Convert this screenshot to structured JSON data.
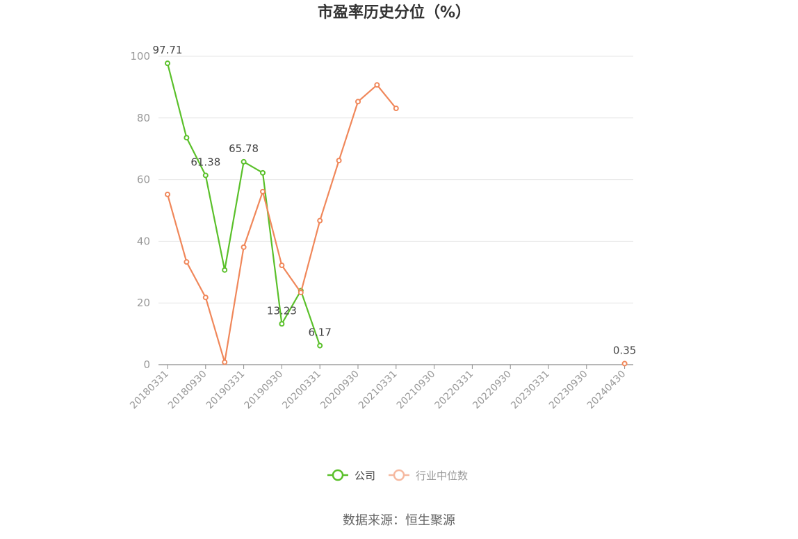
{
  "chart_data": {
    "type": "line",
    "title": "市盈率历史分位（%）",
    "source": "数据来源：恒生聚源",
    "ylim": [
      0,
      100
    ],
    "yticks": [
      0,
      20,
      40,
      60,
      80,
      100
    ],
    "x": [
      "20180331",
      "20180630",
      "20180930",
      "20181231",
      "20190331",
      "20190630",
      "20190930",
      "20191231",
      "20200331",
      "20200630",
      "20200930",
      "20201231",
      "20210331",
      "20210630",
      "20210930",
      "20211231",
      "20220331",
      "20220630",
      "20220930",
      "20221231",
      "20230331",
      "20230630",
      "20230930",
      "20231231",
      "20240430"
    ],
    "xtick_labels": [
      "20180331",
      "20180930",
      "20190331",
      "20190930",
      "20200331",
      "20200930",
      "20210331",
      "20210930",
      "20220331",
      "20220930",
      "20230331",
      "20230930",
      "20240430"
    ],
    "grid": true,
    "legend_position": "bottom",
    "series": [
      {
        "name": "公司",
        "color": "#5ac02a",
        "values": [
          97.71,
          73.6,
          61.38,
          30.7,
          65.78,
          62.2,
          13.23,
          24.0,
          6.17,
          null,
          null,
          null,
          null,
          null,
          null,
          null,
          null,
          null,
          null,
          null,
          null,
          null,
          null,
          null,
          null
        ],
        "labels": {
          "0": "97.71",
          "2": "61.38",
          "4": "65.78",
          "6": "13.23",
          "8": "6.17"
        }
      },
      {
        "name": "行业中位数",
        "color": "#f0875a",
        "values": [
          55.2,
          33.3,
          21.8,
          0.8,
          38.1,
          56.1,
          32.2,
          23.4,
          46.7,
          66.2,
          85.3,
          90.7,
          83.1,
          null,
          null,
          null,
          null,
          null,
          null,
          null,
          null,
          null,
          null,
          null,
          0.35
        ],
        "labels": {
          "24": "0.35"
        }
      }
    ]
  }
}
